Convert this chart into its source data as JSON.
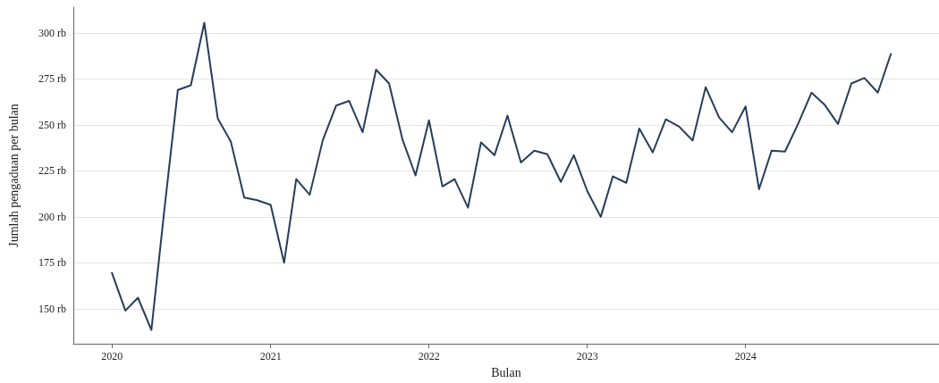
{
  "chart_data": {
    "type": "line",
    "xlabel": "Bulan",
    "ylabel": "Jumlah pengaduan per bulan",
    "x": [
      "2020-01",
      "2020-02",
      "2020-03",
      "2020-04",
      "2020-05",
      "2020-06",
      "2020-07",
      "2020-08",
      "2020-09",
      "2020-10",
      "2020-11",
      "2020-12",
      "2021-01",
      "2021-02",
      "2021-03",
      "2021-04",
      "2021-05",
      "2021-06",
      "2021-07",
      "2021-08",
      "2021-09",
      "2021-10",
      "2021-11",
      "2021-12",
      "2022-01",
      "2022-02",
      "2022-03",
      "2022-04",
      "2022-05",
      "2022-06",
      "2022-07",
      "2022-08",
      "2022-09",
      "2022-10",
      "2022-11",
      "2022-12",
      "2023-01",
      "2023-02",
      "2023-03",
      "2023-04",
      "2023-05",
      "2023-06",
      "2023-07",
      "2023-08",
      "2023-09",
      "2023-10",
      "2023-11",
      "2023-12",
      "2024-01",
      "2024-02",
      "2024-03",
      "2024-04",
      "2024-05",
      "2024-06",
      "2024-07",
      "2024-08",
      "2024-09",
      "2024-10",
      "2024-11",
      "2024-12"
    ],
    "series": [
      {
        "color": "#253d5b",
        "values": [
          169.5,
          149,
          156,
          138.5,
          204,
          269,
          271.5,
          305.5,
          253.5,
          241,
          210.5,
          209,
          206.5,
          175,
          220.5,
          212,
          241.5,
          260.5,
          263,
          246,
          280,
          272.5,
          242,
          222.5,
          252.5,
          216.5,
          220.5,
          205,
          240.5,
          233.5,
          255,
          229.5,
          236,
          234,
          219,
          233.5,
          214,
          200,
          222,
          218.5,
          248,
          235,
          253,
          249,
          241.5,
          270.5,
          254,
          246,
          260,
          215,
          236,
          235.5,
          250.5,
          267.5,
          261,
          250.5,
          272.5,
          275.5,
          267.5,
          288.5
        ]
      }
    ],
    "xlim": [
      "2019-10-04",
      "2025-03-22"
    ],
    "xticks": [
      "2020",
      "2021",
      "2022",
      "2023",
      "2024"
    ],
    "ylim": [
      131,
      314
    ],
    "yticks": [
      {
        "value": 150,
        "label": "150 rb"
      },
      {
        "value": 175,
        "label": "175 rb"
      },
      {
        "value": 200,
        "label": "200 rb"
      },
      {
        "value": 225,
        "label": "225 rb"
      },
      {
        "value": 250,
        "label": "250 rb"
      },
      {
        "value": 275,
        "label": "275 rb"
      },
      {
        "value": 300,
        "label": "300 rb"
      }
    ],
    "grid": "y",
    "marker": "none",
    "line_style": "solid"
  }
}
